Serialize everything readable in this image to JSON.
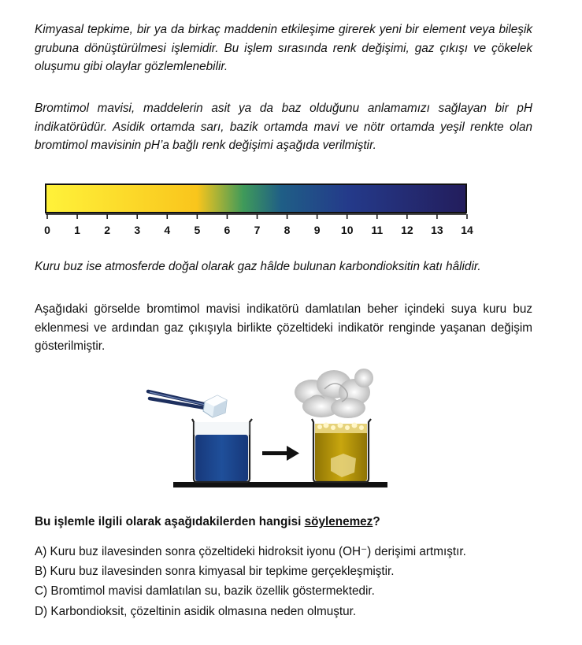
{
  "paragraphs": {
    "reaction": "Kimyasal tepkime, bir ya da birkaç maddenin etkileşime girerek yeni bir element veya bileşik grubuna dönüştürülmesi işlemidir. Bu işlem sırasında renk değişimi, gaz çıkışı ve çökelek oluşumu gibi olaylar gözlemlenebilir.",
    "indicator": "Bromtimol mavisi, maddelerin asit ya da baz olduğunu anlamamızı sağlayan bir pH indikatörüdür. Asidik ortamda sarı, bazik ortamda mavi ve nötr ortamda yeşil renkte olan bromtimol mavisinin pH’a bağlı renk değişimi aşağıda verilmiştir.",
    "dry_ice": "Kuru buz ise atmosferde doğal olarak gaz hâlde bulunan karbondioksitin katı hâlidir.",
    "experiment": "Aşağıdaki görselde bromtimol mavisi indikatörü damlatılan beher içindeki suya kuru buz eklenmesi ve ardından gaz çıkışıyla birlikte çözeltideki indikatör renginde yaşanan değişim gösterilmiştir."
  },
  "ph_scale": {
    "ticks": [
      "0",
      "1",
      "2",
      "3",
      "4",
      "5",
      "6",
      "7",
      "8",
      "9",
      "10",
      "11",
      "12",
      "13",
      "14"
    ],
    "colors": {
      "acidic": "#fff23a",
      "yellow_orange": "#f9c51c",
      "green": "#3f9a5a",
      "teal": "#1f5e86",
      "blue": "#243a8a",
      "dark_blue": "#231d5c"
    }
  },
  "figure": {
    "before_solution_color": "#1f4f9a",
    "after_solution_color": "#c8a60e",
    "icons": [
      "tweezers-icon",
      "dry-ice-cube-icon",
      "beaker-icon",
      "arrow-right-icon",
      "gas-vapor-icon"
    ]
  },
  "question": {
    "prefix": "Bu işlemle ilgili olarak aşağıdakilerden hangisi ",
    "emphasis": "söylenemez",
    "suffix": "?"
  },
  "options": {
    "a": "A) Kuru buz ilavesinden sonra çözeltideki hidroksit iyonu (OH⁻) derişimi artmıştır.",
    "b": "B) Kuru buz ilavesinden sonra kimyasal bir tepkime gerçekleşmiştir.",
    "c": "C) Bromtimol mavisi damlatılan su, bazik özellik göstermektedir.",
    "d": "D) Karbondioksit, çözeltinin asidik olmasına neden olmuştur."
  }
}
